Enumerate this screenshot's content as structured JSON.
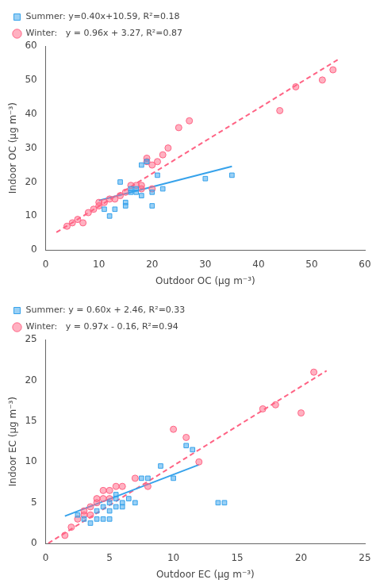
{
  "chart_data": [
    {
      "type": "scatter",
      "xlabel": "Outdoor OC (μg m⁻³)",
      "ylabel": "Indoor OC (μg m⁻³)",
      "xlim": [
        0,
        60
      ],
      "ylim": [
        0,
        60
      ],
      "xticks": [
        0,
        10,
        20,
        30,
        40,
        50,
        60
      ],
      "yticks": [
        0,
        10,
        20,
        30,
        40,
        50,
        60
      ],
      "grid": false,
      "legend": "upper left",
      "series": [
        {
          "name": "Summer: y=0.40x+10.59, R²=0.18",
          "type": "scatter",
          "marker": "square",
          "x": [
            11,
            12,
            13,
            14,
            15,
            15,
            16,
            16,
            17,
            17,
            18,
            18,
            19,
            20,
            20,
            21,
            22,
            30,
            35
          ],
          "values": [
            12,
            10,
            12,
            20,
            13,
            14,
            17,
            18,
            17,
            18,
            16,
            25,
            26,
            17,
            13,
            22,
            18,
            21,
            22
          ]
        },
        {
          "name": "Winter:   y = 0.96x + 3.27, R²=0.87",
          "type": "scatter",
          "marker": "circle",
          "x": [
            4,
            5,
            6,
            7,
            8,
            9,
            10,
            10,
            11,
            12,
            13,
            14,
            15,
            16,
            17,
            18,
            18,
            19,
            19,
            20,
            20,
            21,
            22,
            23,
            25,
            27,
            44,
            47,
            52,
            54
          ],
          "values": [
            7,
            8,
            9,
            8,
            11,
            12,
            13,
            14,
            14,
            15,
            15,
            16,
            17,
            19,
            19,
            18,
            19,
            26,
            27,
            18,
            25,
            26,
            28,
            30,
            36,
            38,
            41,
            48,
            50,
            53
          ]
        },
        {
          "type": "line",
          "line_style": "solid",
          "x": [
            10,
            35
          ],
          "values": [
            14.59,
            24.59
          ]
        },
        {
          "type": "line",
          "line_style": "dashed",
          "x": [
            2,
            55
          ],
          "values": [
            5.19,
            56.07
          ]
        }
      ]
    },
    {
      "type": "scatter",
      "xlabel": "Outdoor EC (μg m⁻³)",
      "ylabel": "Indoor EC (μg m⁻³)",
      "xlim": [
        0,
        25
      ],
      "ylim": [
        0,
        25
      ],
      "xticks": [
        0,
        5,
        10,
        15,
        20,
        25
      ],
      "yticks": [
        0,
        5,
        10,
        15,
        20,
        25
      ],
      "grid": false,
      "legend": "upper left",
      "series": [
        {
          "name": "Summer: y = 0.60x + 2.46, R²=0.33",
          "type": "scatter",
          "marker": "square",
          "x": [
            2.5,
            3.0,
            3.5,
            4.0,
            4.0,
            4.5,
            4.5,
            5.0,
            5.0,
            5.0,
            5.5,
            5.5,
            5.5,
            6.0,
            6.0,
            6.5,
            7.0,
            7.5,
            8.0,
            9.0,
            10.0,
            11.0,
            11.5,
            13.5,
            14.0
          ],
          "values": [
            3.5,
            3.0,
            2.5,
            3.0,
            4.0,
            3.0,
            4.5,
            3.0,
            4.0,
            5.0,
            4.5,
            5.5,
            6.0,
            4.5,
            5.0,
            5.5,
            5.0,
            8.0,
            8.0,
            9.5,
            8.0,
            12.0,
            11.5,
            5.0,
            5.0
          ]
        },
        {
          "name": "Winter:   y = 0.97x - 0.16, R²=0.94",
          "type": "scatter",
          "marker": "circle",
          "x": [
            1.5,
            2.0,
            2.5,
            3.0,
            3.0,
            3.5,
            3.5,
            4.0,
            4.0,
            4.5,
            4.5,
            5.0,
            5.0,
            5.5,
            6.0,
            7.0,
            8.0,
            10.0,
            11.0,
            12.0,
            17.0,
            18.0,
            20.0,
            21.0
          ],
          "values": [
            1.0,
            2.0,
            3.0,
            3.5,
            4.0,
            3.5,
            4.5,
            5.0,
            5.5,
            5.5,
            6.5,
            5.5,
            6.5,
            7.0,
            7.0,
            8.0,
            7.0,
            14.0,
            13.0,
            10.0,
            16.5,
            17.0,
            16.0,
            21.0
          ]
        },
        {
          "type": "line",
          "line_style": "solid",
          "x": [
            1.5,
            12.0
          ],
          "values": [
            3.36,
            9.66
          ]
        },
        {
          "type": "line",
          "line_style": "dashed",
          "x": [
            0.2,
            22.0
          ],
          "values": [
            0.034,
            21.18
          ]
        }
      ]
    }
  ]
}
